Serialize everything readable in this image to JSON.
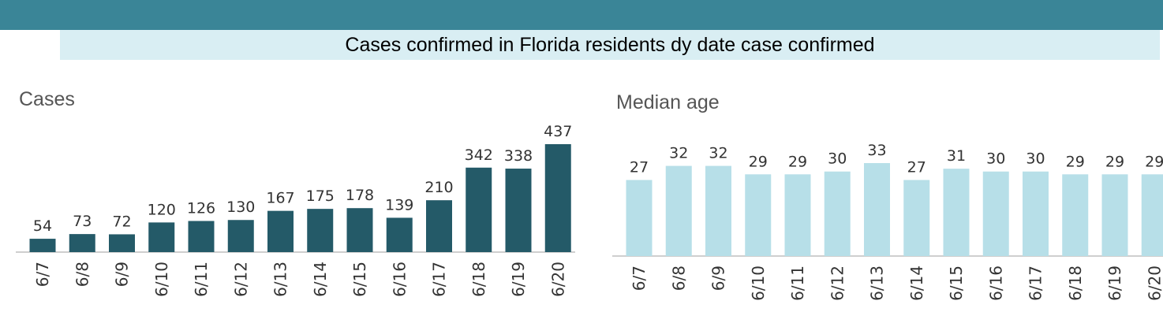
{
  "title": "Cases confirmed in Florida residents dy date case confirmed",
  "colors": {
    "band": "#3a8597",
    "title_bg": "#d9eef3",
    "cases_bar": "#245a68",
    "age_bar": "#b7dfe8",
    "axis": "#bfbfbf"
  },
  "chart_data": [
    {
      "type": "bar",
      "title": "Cases",
      "categories": [
        "6/7",
        "6/8",
        "6/9",
        "6/10",
        "6/11",
        "6/12",
        "6/13",
        "6/14",
        "6/15",
        "6/16",
        "6/17",
        "6/18",
        "6/19",
        "6/20"
      ],
      "values": [
        54,
        73,
        72,
        120,
        126,
        130,
        167,
        175,
        178,
        139,
        210,
        342,
        338,
        437
      ],
      "labels": [
        "54",
        "73",
        "72",
        "120",
        "126",
        "130",
        "167",
        "175",
        "178",
        "139",
        "210",
        "342",
        "338",
        "437"
      ],
      "xlabel": "",
      "ylabel": "",
      "ylim": [
        0,
        437
      ],
      "grid": false,
      "legend": "none"
    },
    {
      "type": "bar",
      "title": "Median age",
      "categories": [
        "6/7",
        "6/8",
        "6/9",
        "6/10",
        "6/11",
        "6/12",
        "6/13",
        "6/14",
        "6/15",
        "6/16",
        "6/17",
        "6/18",
        "6/19",
        "6/20"
      ],
      "values": [
        27,
        32,
        32,
        29,
        29,
        30,
        33,
        27,
        31,
        30,
        30,
        29,
        29,
        29
      ],
      "labels": [
        "27",
        "32",
        "32",
        "29",
        "29",
        "30",
        "33",
        "27",
        "31",
        "30",
        "30",
        "29",
        "29",
        "29"
      ],
      "xlabel": "",
      "ylabel": "",
      "ylim": [
        0,
        33
      ],
      "grid": false,
      "legend": "none"
    }
  ]
}
